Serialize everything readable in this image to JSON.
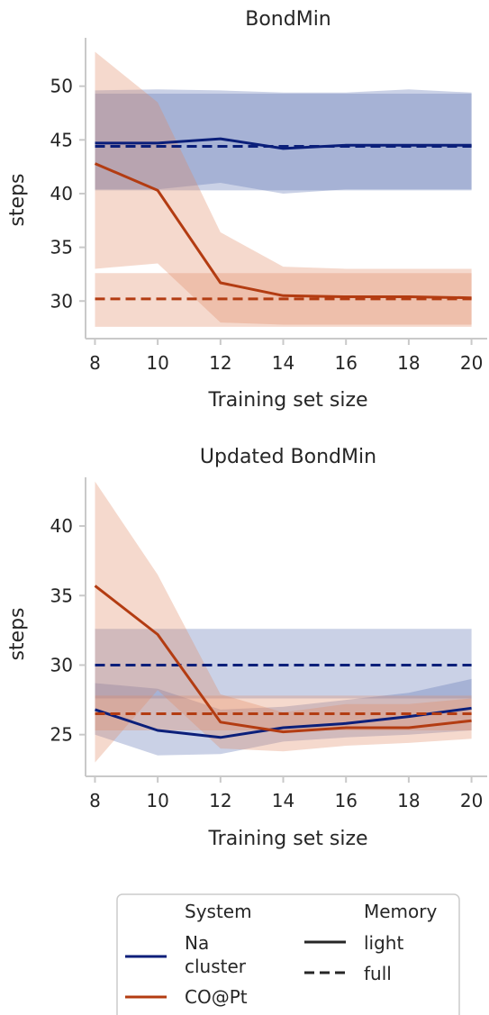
{
  "colors": {
    "na_line": "#0b1f7a",
    "na_band": "#5a6fb2",
    "co_line": "#b33c12",
    "co_band": "#e08a62",
    "axis": "#c9c9c9",
    "text": "#262626"
  },
  "legend": {
    "system_title": "System",
    "system_entries": [
      {
        "label_lines": [
          "Na",
          "cluster"
        ],
        "color": "#0b1f7a"
      },
      {
        "label_lines": [
          "CO@Pt"
        ],
        "color": "#b33c12"
      }
    ],
    "memory_title": "Memory",
    "memory_entries": [
      {
        "label": "light",
        "style": "solid"
      },
      {
        "label": "full",
        "style": "dashed"
      }
    ]
  },
  "chart_data": [
    {
      "type": "line",
      "title": "BondMin",
      "xlabel": "Training set size",
      "ylabel": "steps",
      "xlim": [
        7.7,
        20.5
      ],
      "ylim": [
        26.5,
        54.5
      ],
      "xticks": [
        8,
        10,
        12,
        14,
        16,
        18,
        20
      ],
      "yticks": [
        30,
        35,
        40,
        45,
        50
      ],
      "x": [
        8,
        10,
        12,
        14,
        16,
        18,
        20
      ],
      "series": [
        {
          "system": "Na cluster",
          "memory": "light",
          "color": "#0b1f7a",
          "values": [
            44.7,
            44.7,
            45.1,
            44.2,
            44.5,
            44.5,
            44.5
          ],
          "band_low": [
            40.4,
            40.4,
            41.0,
            40.0,
            40.4,
            40.4,
            40.4
          ],
          "band_high": [
            49.6,
            49.7,
            49.6,
            49.4,
            49.4,
            49.7,
            49.4
          ]
        },
        {
          "system": "Na cluster",
          "memory": "full",
          "color": "#0b1f7a",
          "values": [
            44.4,
            44.4,
            44.4,
            44.4,
            44.4,
            44.4,
            44.4
          ],
          "band_low": [
            40.3,
            40.3,
            40.3,
            40.3,
            40.3,
            40.3,
            40.3
          ],
          "band_high": [
            49.3,
            49.3,
            49.3,
            49.3,
            49.3,
            49.3,
            49.3
          ]
        },
        {
          "system": "CO@Pt",
          "memory": "light",
          "color": "#b33c12",
          "values": [
            42.8,
            40.3,
            31.7,
            30.5,
            30.4,
            30.4,
            30.3
          ],
          "band_low": [
            33.0,
            33.5,
            28.0,
            27.8,
            27.8,
            27.8,
            27.8
          ],
          "band_high": [
            53.2,
            48.5,
            36.4,
            33.2,
            33.0,
            33.0,
            33.0
          ]
        },
        {
          "system": "CO@Pt",
          "memory": "full",
          "color": "#b33c12",
          "values": [
            30.2,
            30.2,
            30.2,
            30.2,
            30.2,
            30.2,
            30.2
          ],
          "band_low": [
            27.6,
            27.6,
            27.6,
            27.6,
            27.6,
            27.6,
            27.6
          ],
          "band_high": [
            32.6,
            32.6,
            32.6,
            32.6,
            32.6,
            32.6,
            32.6
          ]
        }
      ]
    },
    {
      "type": "line",
      "title": "Updated BondMin",
      "xlabel": "Training set size",
      "ylabel": "steps",
      "xlim": [
        7.7,
        20.5
      ],
      "ylim": [
        22.0,
        43.5
      ],
      "xticks": [
        8,
        10,
        12,
        14,
        16,
        18,
        20
      ],
      "yticks": [
        25,
        30,
        35,
        40
      ],
      "x": [
        8,
        10,
        12,
        14,
        16,
        18,
        20
      ],
      "series": [
        {
          "system": "Na cluster",
          "memory": "light",
          "color": "#0b1f7a",
          "values": [
            26.8,
            25.3,
            24.8,
            25.5,
            25.8,
            26.3,
            26.9
          ],
          "band_low": [
            25.0,
            23.5,
            23.6,
            24.5,
            24.8,
            25.0,
            25.3
          ],
          "band_high": [
            28.7,
            28.3,
            26.8,
            27.0,
            27.5,
            28.0,
            29.0
          ]
        },
        {
          "system": "Na cluster",
          "memory": "full",
          "color": "#0b1f7a",
          "values": [
            30.0,
            30.0,
            30.0,
            30.0,
            30.0,
            30.0,
            30.0
          ],
          "band_low": [
            27.6,
            27.6,
            27.6,
            27.6,
            27.6,
            27.6,
            27.6
          ],
          "band_high": [
            32.6,
            32.6,
            32.6,
            32.6,
            32.6,
            32.6,
            32.6
          ]
        },
        {
          "system": "CO@Pt",
          "memory": "light",
          "color": "#b33c12",
          "values": [
            35.7,
            32.2,
            25.9,
            25.2,
            25.5,
            25.5,
            26.0
          ],
          "band_low": [
            23.0,
            28.2,
            24.0,
            23.8,
            24.2,
            24.4,
            24.7
          ],
          "band_high": [
            43.2,
            36.5,
            27.9,
            26.6,
            27.2,
            27.2,
            27.6
          ]
        },
        {
          "system": "CO@Pt",
          "memory": "full",
          "color": "#b33c12",
          "values": [
            26.5,
            26.5,
            26.5,
            26.5,
            26.5,
            26.5,
            26.5
          ],
          "band_low": [
            25.3,
            25.3,
            25.3,
            25.3,
            25.3,
            25.3,
            25.3
          ],
          "band_high": [
            27.8,
            27.8,
            27.8,
            27.8,
            27.8,
            27.8,
            27.8
          ]
        }
      ]
    }
  ]
}
